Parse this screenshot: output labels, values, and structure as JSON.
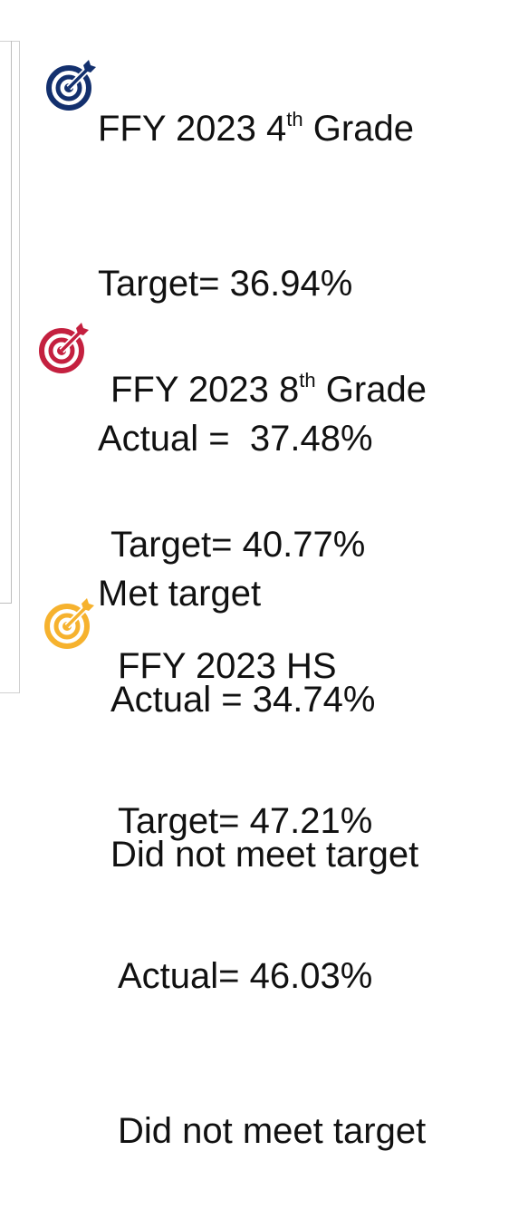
{
  "blocks": [
    {
      "title_parts": [
        "FFY 2023 4",
        "th",
        "Grade"
      ],
      "target": "Target= 36.94%",
      "actual": "Actual =  37.48%",
      "status": "Met target"
    },
    {
      "title_parts": [
        "FFY 2023 8",
        "th",
        "Grade"
      ],
      "target": "Target= 40.77%",
      "actual": "Actual = 34.74%",
      "status": "Did not meet target"
    },
    {
      "title": "FFY 2023 HS",
      "target": "Target= 47.21%",
      "actual": "Actual= 46.03%",
      "status": "Did not meet target"
    }
  ]
}
